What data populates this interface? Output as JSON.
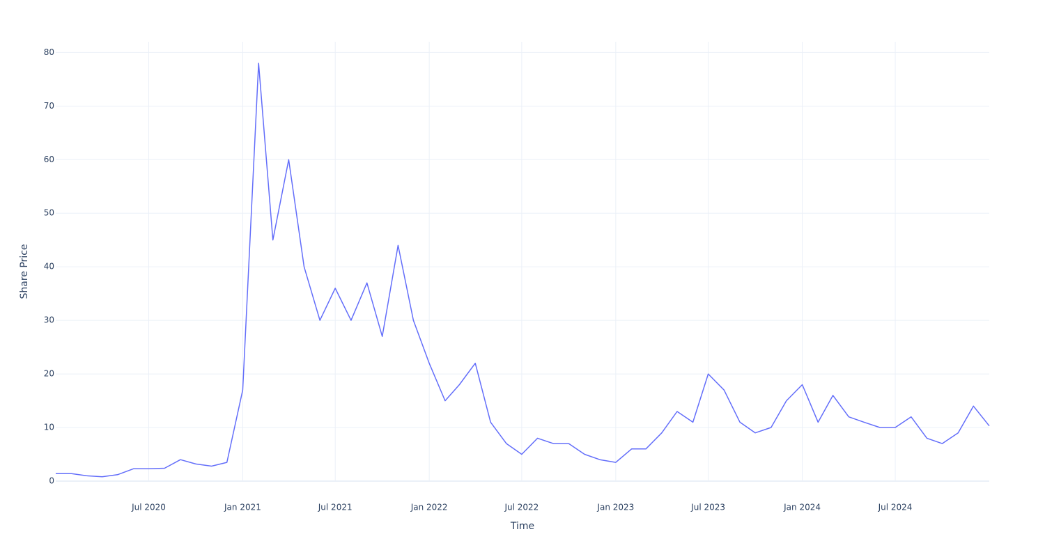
{
  "chart_data": {
    "type": "line",
    "x_label": "Time",
    "y_label": "Share Price",
    "x": [
      "2020-01",
      "2020-02",
      "2020-03",
      "2020-04",
      "2020-05",
      "2020-06",
      "2020-07",
      "2020-08",
      "2020-09",
      "2020-10",
      "2020-11",
      "2020-12",
      "2021-01",
      "2021-02",
      "2021-03",
      "2021-04",
      "2021-05",
      "2021-06",
      "2021-07",
      "2021-08",
      "2021-09",
      "2021-10",
      "2021-11",
      "2021-12",
      "2022-01",
      "2022-02",
      "2022-03",
      "2022-04",
      "2022-05",
      "2022-06",
      "2022-07",
      "2022-08",
      "2022-09",
      "2022-10",
      "2022-11",
      "2022-12",
      "2023-01",
      "2023-02",
      "2023-03",
      "2023-04",
      "2023-05",
      "2023-06",
      "2023-07",
      "2023-08",
      "2023-09",
      "2023-10",
      "2023-11",
      "2023-12",
      "2024-01",
      "2024-02",
      "2024-03",
      "2024-04",
      "2024-05",
      "2024-06",
      "2024-07",
      "2024-08",
      "2024-09",
      "2024-10",
      "2024-11",
      "2024-12",
      "2025-01"
    ],
    "series": [
      {
        "name": "Share Price",
        "color": "#636efa",
        "values": [
          1.4,
          1.4,
          1.0,
          0.8,
          1.2,
          2.3,
          2.3,
          2.4,
          4.0,
          3.2,
          2.8,
          3.5,
          17,
          78,
          45,
          60,
          40,
          30,
          36,
          30,
          37,
          27,
          44,
          30,
          22,
          15,
          18,
          22,
          11,
          7,
          5,
          8,
          7,
          7,
          5,
          4,
          3.5,
          6,
          6,
          9,
          13,
          11,
          20,
          17,
          11,
          9,
          10,
          15,
          18,
          11,
          16,
          12,
          11,
          10,
          10,
          12,
          8,
          7,
          9,
          14,
          10.3
        ]
      }
    ],
    "xlim": [
      "2020-01",
      "2025-01"
    ],
    "xticks": [
      {
        "value": "2020-07",
        "label": "Jul 2020"
      },
      {
        "value": "2021-01",
        "label": "Jan 2021"
      },
      {
        "value": "2021-07",
        "label": "Jul 2021"
      },
      {
        "value": "2022-01",
        "label": "Jan 2022"
      },
      {
        "value": "2022-07",
        "label": "Jul 2022"
      },
      {
        "value": "2023-01",
        "label": "Jan 2023"
      },
      {
        "value": "2023-07",
        "label": "Jul 2023"
      },
      {
        "value": "2024-01",
        "label": "Jan 2024"
      },
      {
        "value": "2024-07",
        "label": "Jul 2024"
      }
    ],
    "ylim": [
      0,
      82
    ],
    "yticks": [
      0,
      10,
      20,
      30,
      40,
      50,
      60,
      70,
      80
    ],
    "grid": true
  }
}
